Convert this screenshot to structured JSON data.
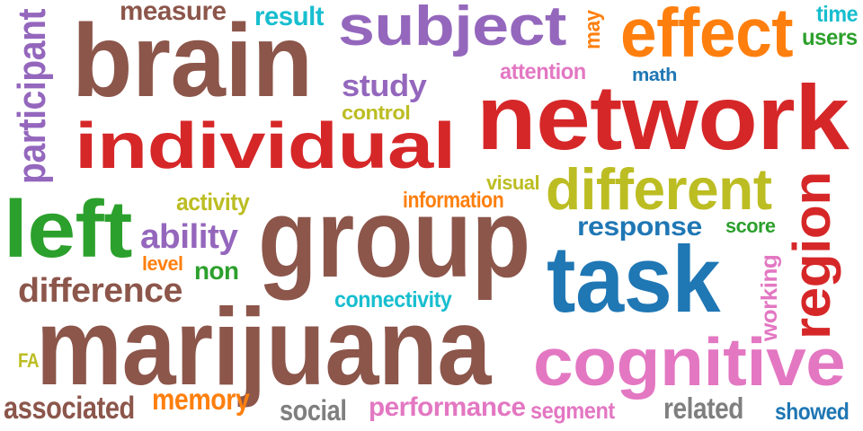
{
  "words": [
    {
      "id": "brain",
      "text": "brain",
      "color": "#8c564b"
    },
    {
      "id": "individual",
      "text": "individual",
      "color": "#d62728"
    },
    {
      "id": "network",
      "text": "network",
      "color": "#d62728"
    },
    {
      "id": "subject",
      "text": "subject",
      "color": "#9467bd"
    },
    {
      "id": "effect",
      "text": "effect",
      "color": "#ff7f0e"
    },
    {
      "id": "group",
      "text": "group",
      "color": "#8c564b"
    },
    {
      "id": "left",
      "text": "left",
      "color": "#2ca02c"
    },
    {
      "id": "marijuana",
      "text": "marijuana",
      "color": "#8c564b"
    },
    {
      "id": "task",
      "text": "task",
      "color": "#1f77b4"
    },
    {
      "id": "cognitive",
      "text": "cognitive",
      "color": "#e377c2"
    },
    {
      "id": "region",
      "text": "region",
      "color": "#d62728"
    },
    {
      "id": "different",
      "text": "different",
      "color": "#bcbd22"
    },
    {
      "id": "participant",
      "text": "participant",
      "color": "#9467bd"
    },
    {
      "id": "measure",
      "text": "measure",
      "color": "#8c564b"
    },
    {
      "id": "result",
      "text": "result",
      "color": "#17becf"
    },
    {
      "id": "may",
      "text": "may",
      "color": "#ff7f0e"
    },
    {
      "id": "time",
      "text": "time",
      "color": "#17becf"
    },
    {
      "id": "users",
      "text": "users",
      "color": "#2ca02c"
    },
    {
      "id": "study",
      "text": "study",
      "color": "#9467bd"
    },
    {
      "id": "attention",
      "text": "attention",
      "color": "#e377c2"
    },
    {
      "id": "math",
      "text": "math",
      "color": "#1f77b4"
    },
    {
      "id": "control",
      "text": "control",
      "color": "#bcbd22"
    },
    {
      "id": "activity",
      "text": "activity",
      "color": "#bcbd22"
    },
    {
      "id": "information",
      "text": "information",
      "color": "#ff7f0e"
    },
    {
      "id": "visual",
      "text": "visual",
      "color": "#bcbd22"
    },
    {
      "id": "ability",
      "text": "ability",
      "color": "#9467bd"
    },
    {
      "id": "response",
      "text": "response",
      "color": "#1f77b4"
    },
    {
      "id": "score",
      "text": "score",
      "color": "#2ca02c"
    },
    {
      "id": "level",
      "text": "level",
      "color": "#ff7f0e"
    },
    {
      "id": "non",
      "text": "non",
      "color": "#2ca02c"
    },
    {
      "id": "difference",
      "text": "difference",
      "color": "#8c564b"
    },
    {
      "id": "connectivity",
      "text": "connectivity",
      "color": "#17becf"
    },
    {
      "id": "working",
      "text": "working",
      "color": "#e377c2"
    },
    {
      "id": "FA",
      "text": "FA",
      "color": "#bcbd22"
    },
    {
      "id": "associated",
      "text": "associated",
      "color": "#8c564b"
    },
    {
      "id": "memory",
      "text": "memory",
      "color": "#ff7f0e"
    },
    {
      "id": "social",
      "text": "social",
      "color": "#7f7f7f"
    },
    {
      "id": "performance",
      "text": "performance",
      "color": "#e377c2"
    },
    {
      "id": "segment",
      "text": "segment",
      "color": "#e377c2"
    },
    {
      "id": "related",
      "text": "related",
      "color": "#7f7f7f"
    },
    {
      "id": "showed",
      "text": "showed",
      "color": "#1f77b4"
    }
  ]
}
